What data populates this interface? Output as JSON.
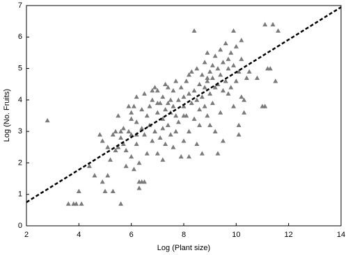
{
  "chart_data": {
    "type": "scatter",
    "x_label": "Log (Plant size)",
    "y_label": "Log (No. Fruits)",
    "xlim": [
      2,
      14
    ],
    "ylim": [
      0,
      7
    ],
    "xticks": [
      2,
      4,
      6,
      8,
      10,
      12,
      14
    ],
    "yticks": [
      0,
      1,
      2,
      3,
      4,
      5,
      6,
      7
    ],
    "color": "#7a7a7a",
    "trendline": {
      "x": [
        2,
        14
      ],
      "y": [
        0.75,
        6.95
      ],
      "color": "#000000"
    },
    "x": [
      2.8,
      3.6,
      3.8,
      3.9,
      4.1,
      4.0,
      4.4,
      4.6,
      4.8,
      4.9,
      5.0,
      5.1,
      5.1,
      5.2,
      5.3,
      5.3,
      5.4,
      5.4,
      5.5,
      5.5,
      5.6,
      5.6,
      5.7,
      5.7,
      5.8,
      5.8,
      5.9,
      5.9,
      6.0,
      6.0,
      6.0,
      6.1,
      6.1,
      6.2,
      6.2,
      6.2,
      6.3,
      6.3,
      6.3,
      6.4,
      6.4,
      6.4,
      6.5,
      6.5,
      6.5,
      6.6,
      6.6,
      6.7,
      6.7,
      6.8,
      6.8,
      6.9,
      6.9,
      7.0,
      7.0,
      7.0,
      7.1,
      7.1,
      7.2,
      7.2,
      7.2,
      7.3,
      7.3,
      7.3,
      7.4,
      7.4,
      7.5,
      7.5,
      7.5,
      7.6,
      7.6,
      7.7,
      7.7,
      7.7,
      7.8,
      7.8,
      7.9,
      7.9,
      8.0,
      8.0,
      8.0,
      8.1,
      8.1,
      8.2,
      8.2,
      8.2,
      8.3,
      8.3,
      8.4,
      8.4,
      8.4,
      8.5,
      8.5,
      8.5,
      8.6,
      8.6,
      8.6,
      8.7,
      8.7,
      8.7,
      8.8,
      8.8,
      8.8,
      8.9,
      8.9,
      8.9,
      9.0,
      9.0,
      9.0,
      9.1,
      9.1,
      9.1,
      9.2,
      9.2,
      9.2,
      9.3,
      9.3,
      9.3,
      9.4,
      9.4,
      9.4,
      9.5,
      9.5,
      9.5,
      9.6,
      9.6,
      9.7,
      9.7,
      9.8,
      9.8,
      9.9,
      9.9,
      9.9,
      10.0,
      10.0,
      10.1,
      10.1,
      10.2,
      10.2,
      10.2,
      10.3,
      10.4,
      10.5,
      10.8,
      11.0,
      11.1,
      11.1,
      11.3,
      11.4,
      11.5,
      11.6,
      11.2,
      10.3,
      10.1,
      6.8,
      7.0,
      7.4,
      7.6,
      8.2,
      8.9,
      9.7,
      6.0,
      5.6,
      4.9,
      6.2,
      7.2,
      8.0
    ],
    "y": [
      3.35,
      0.7,
      0.7,
      0.7,
      0.7,
      1.1,
      1.9,
      1.6,
      2.9,
      1.4,
      1.1,
      2.5,
      1.6,
      2.1,
      1.1,
      2.9,
      3.0,
      2.4,
      2.5,
      3.5,
      0.7,
      2.8,
      2.6,
      3.1,
      1.9,
      2.4,
      3.0,
      3.8,
      2.9,
      3.4,
      2.2,
      1.8,
      3.8,
      2.6,
      3.3,
      4.1,
      1.4,
      1.2,
      2.0,
      1.4,
      3.1,
      3.7,
      2.9,
      1.4,
      4.2,
      3.5,
      2.3,
      3.8,
      3.2,
      4.0,
      2.7,
      4.4,
      3.0,
      3.6,
      2.3,
      4.3,
      3.9,
      2.8,
      3.4,
      4.1,
      2.1,
      3.7,
      4.5,
      2.6,
      3.2,
      3.9,
      4.0,
      2.9,
      3.6,
      4.3,
      2.5,
      3.5,
      4.6,
      3.0,
      4.0,
      3.3,
      4.4,
      2.2,
      3.8,
      4.1,
      2.7,
      3.5,
      4.6,
      4.2,
      3.0,
      2.2,
      3.9,
      4.9,
      4.3,
      3.4,
      6.2,
      5.0,
      4.0,
      2.6,
      4.5,
      3.7,
      3.2,
      4.8,
      4.1,
      2.3,
      5.2,
      3.8,
      4.4,
      4.6,
      3.5,
      5.5,
      4.2,
      4.9,
      3.2,
      4.7,
      5.1,
      3.9,
      4.4,
      5.4,
      3.0,
      4.5,
      5.0,
      2.3,
      4.8,
      5.6,
      3.6,
      4.3,
      5.2,
      2.7,
      4.6,
      5.8,
      5.0,
      4.2,
      5.5,
      4.4,
      5.1,
      3.8,
      6.2,
      4.6,
      5.7,
      4.9,
      3.2,
      5.3,
      4.1,
      5.9,
      3.6,
      4.7,
      4.9,
      4.7,
      3.8,
      6.4,
      3.8,
      5.0,
      6.4,
      4.6,
      6.2,
      5.0,
      4.0,
      2.9,
      4.3,
      3.9,
      4.4,
      3.8,
      4.8,
      4.7,
      5.3,
      3.6,
      3.0,
      2.7,
      2.9,
      3.1,
      3.5
    ]
  }
}
